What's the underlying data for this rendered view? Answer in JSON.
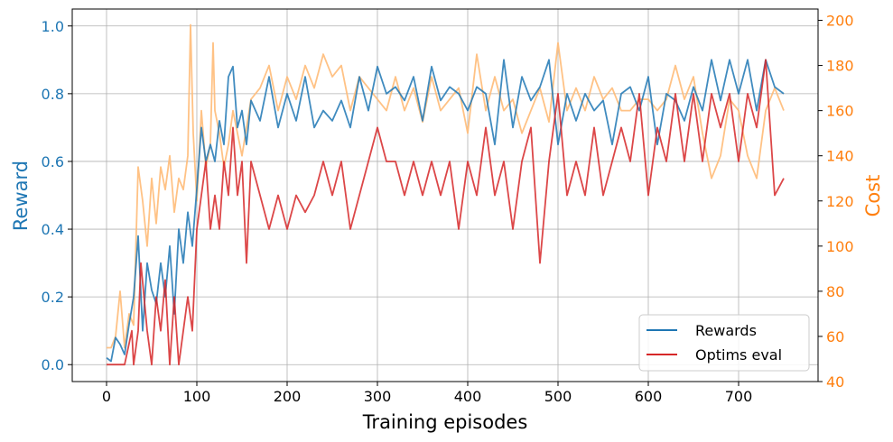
{
  "chart_data": {
    "type": "line",
    "xlabel": "Training episodes",
    "ylabel": "Reward",
    "y2label": "Cost",
    "xlim": [
      -38,
      788
    ],
    "ylim": [
      -0.05,
      1.05
    ],
    "y2lim": [
      40,
      205
    ],
    "xticks": [
      0,
      100,
      200,
      300,
      400,
      500,
      600,
      700
    ],
    "yticks": [
      0.0,
      0.2,
      0.4,
      0.6,
      0.8,
      1.0
    ],
    "y2ticks": [
      40,
      60,
      80,
      100,
      120,
      140,
      160,
      180,
      200
    ],
    "x_tick_labels": [
      "0",
      "100",
      "200",
      "300",
      "400",
      "500",
      "600",
      "700"
    ],
    "y_tick_labels": [
      "0.0",
      "0.2",
      "0.4",
      "0.6",
      "0.8",
      "1.0"
    ],
    "y2_tick_labels": [
      "40",
      "60",
      "80",
      "100",
      "120",
      "140",
      "160",
      "180",
      "200"
    ],
    "grid": true,
    "legend_position": "bottom-right",
    "colors": {
      "reward_axis": "#1f77b4",
      "cost_axis": "#ff7f0e"
    },
    "series": [
      {
        "name": "Rewards",
        "axis": "left",
        "color": "#1f77b4",
        "x": [
          0,
          5,
          10,
          15,
          20,
          25,
          30,
          35,
          40,
          45,
          50,
          55,
          60,
          65,
          70,
          75,
          80,
          85,
          90,
          95,
          100,
          105,
          110,
          115,
          120,
          125,
          130,
          135,
          140,
          145,
          150,
          155,
          160,
          170,
          180,
          190,
          200,
          210,
          220,
          230,
          240,
          250,
          260,
          270,
          280,
          290,
          300,
          310,
          320,
          330,
          340,
          350,
          360,
          370,
          380,
          390,
          400,
          410,
          420,
          430,
          440,
          450,
          460,
          470,
          480,
          490,
          500,
          510,
          520,
          530,
          540,
          550,
          560,
          570,
          580,
          590,
          600,
          610,
          620,
          630,
          640,
          650,
          660,
          670,
          680,
          690,
          700,
          710,
          720,
          730,
          740,
          750
        ],
        "values": [
          0.02,
          0.01,
          0.08,
          0.06,
          0.03,
          0.12,
          0.2,
          0.38,
          0.1,
          0.3,
          0.22,
          0.18,
          0.3,
          0.2,
          0.35,
          0.15,
          0.4,
          0.3,
          0.45,
          0.35,
          0.52,
          0.7,
          0.6,
          0.65,
          0.6,
          0.72,
          0.65,
          0.85,
          0.88,
          0.7,
          0.75,
          0.65,
          0.78,
          0.72,
          0.85,
          0.7,
          0.8,
          0.72,
          0.85,
          0.7,
          0.75,
          0.72,
          0.78,
          0.7,
          0.85,
          0.75,
          0.88,
          0.8,
          0.82,
          0.78,
          0.85,
          0.72,
          0.88,
          0.78,
          0.82,
          0.8,
          0.75,
          0.82,
          0.8,
          0.65,
          0.9,
          0.7,
          0.85,
          0.78,
          0.82,
          0.9,
          0.65,
          0.8,
          0.72,
          0.8,
          0.75,
          0.78,
          0.65,
          0.8,
          0.82,
          0.75,
          0.85,
          0.65,
          0.8,
          0.78,
          0.72,
          0.82,
          0.75,
          0.9,
          0.78,
          0.9,
          0.8,
          0.9,
          0.75,
          0.9,
          0.82,
          0.8
        ]
      },
      {
        "name": "Optims eval",
        "axis": "left",
        "color": "#d62728",
        "x": [
          0,
          10,
          20,
          28,
          30,
          35,
          38,
          45,
          50,
          55,
          60,
          65,
          70,
          75,
          80,
          85,
          90,
          95,
          100,
          105,
          110,
          115,
          120,
          125,
          130,
          135,
          140,
          145,
          150,
          155,
          160,
          170,
          180,
          190,
          200,
          210,
          220,
          230,
          240,
          250,
          260,
          270,
          280,
          290,
          300,
          310,
          320,
          330,
          340,
          350,
          360,
          370,
          380,
          390,
          400,
          410,
          420,
          430,
          440,
          450,
          460,
          470,
          480,
          490,
          500,
          510,
          520,
          530,
          540,
          550,
          560,
          570,
          580,
          590,
          600,
          610,
          620,
          630,
          640,
          650,
          660,
          670,
          680,
          690,
          700,
          710,
          720,
          730,
          740,
          750
        ],
        "values": [
          0.0,
          0.0,
          0.0,
          0.1,
          0.0,
          0.1,
          0.3,
          0.1,
          0.0,
          0.2,
          0.1,
          0.25,
          0.0,
          0.2,
          0.0,
          0.1,
          0.2,
          0.1,
          0.4,
          0.5,
          0.6,
          0.4,
          0.5,
          0.4,
          0.6,
          0.5,
          0.7,
          0.5,
          0.6,
          0.3,
          0.6,
          0.5,
          0.4,
          0.5,
          0.4,
          0.5,
          0.45,
          0.5,
          0.6,
          0.5,
          0.6,
          0.4,
          0.5,
          0.6,
          0.7,
          0.6,
          0.6,
          0.5,
          0.6,
          0.5,
          0.6,
          0.5,
          0.6,
          0.4,
          0.6,
          0.5,
          0.7,
          0.5,
          0.6,
          0.4,
          0.6,
          0.7,
          0.3,
          0.6,
          0.8,
          0.5,
          0.6,
          0.5,
          0.7,
          0.5,
          0.6,
          0.7,
          0.6,
          0.8,
          0.5,
          0.7,
          0.6,
          0.8,
          0.6,
          0.8,
          0.6,
          0.8,
          0.7,
          0.8,
          0.6,
          0.8,
          0.7,
          0.9,
          0.5,
          0.55
        ]
      },
      {
        "name": "Cost",
        "axis": "right",
        "color": "#ffbb78",
        "x": [
          0,
          5,
          10,
          15,
          20,
          25,
          30,
          35,
          40,
          45,
          50,
          55,
          60,
          65,
          70,
          75,
          80,
          85,
          90,
          93,
          96,
          100,
          105,
          110,
          115,
          118,
          120,
          125,
          130,
          135,
          140,
          150,
          160,
          170,
          180,
          190,
          200,
          210,
          220,
          230,
          240,
          250,
          260,
          270,
          280,
          290,
          300,
          310,
          320,
          330,
          340,
          350,
          360,
          370,
          380,
          390,
          400,
          410,
          420,
          430,
          440,
          450,
          460,
          470,
          480,
          490,
          500,
          510,
          520,
          530,
          540,
          550,
          560,
          570,
          580,
          590,
          600,
          610,
          620,
          630,
          640,
          650,
          660,
          670,
          680,
          690,
          700,
          710,
          720,
          730,
          740,
          750
        ],
        "values": [
          55,
          55,
          60,
          80,
          55,
          70,
          65,
          135,
          120,
          100,
          130,
          110,
          135,
          125,
          140,
          115,
          130,
          125,
          140,
          198,
          150,
          120,
          160,
          135,
          145,
          190,
          160,
          150,
          135,
          145,
          160,
          140,
          165,
          170,
          180,
          160,
          175,
          165,
          180,
          170,
          185,
          175,
          180,
          160,
          175,
          170,
          165,
          160,
          175,
          160,
          170,
          155,
          175,
          160,
          165,
          170,
          150,
          185,
          160,
          175,
          160,
          165,
          150,
          160,
          170,
          155,
          190,
          160,
          170,
          160,
          175,
          165,
          170,
          160,
          160,
          165,
          165,
          160,
          165,
          180,
          165,
          175,
          150,
          130,
          140,
          165,
          160,
          140,
          130,
          160,
          170,
          160
        ]
      }
    ]
  },
  "legend": {
    "items": [
      {
        "label": "Rewards",
        "color": "#1f77b4"
      },
      {
        "label": "Optims eval",
        "color": "#d62728"
      }
    ]
  }
}
